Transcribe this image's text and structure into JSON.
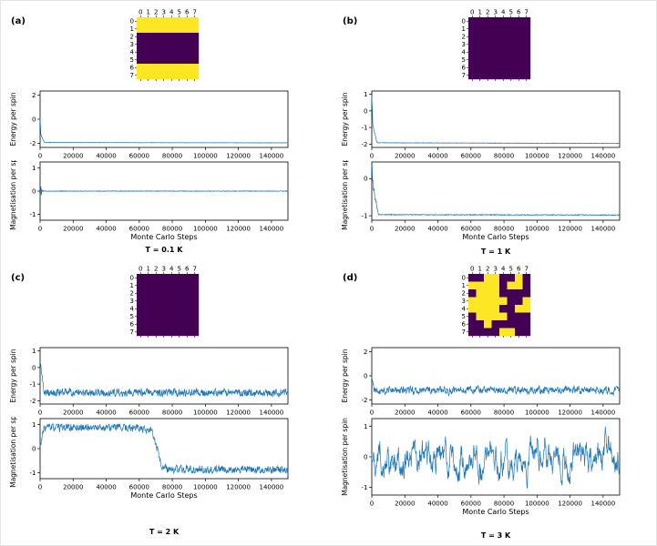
{
  "labels": {
    "xlabel": "Monte Carlo Steps",
    "energy_ylabel": "Energy per spin",
    "magnetisation_ylabel": "Magnetisation per spin"
  },
  "colors": {
    "line": "#1f77b4",
    "spin_up": "#fde725",
    "spin_down": "#440154",
    "axis": "#000000"
  },
  "chart_data": [
    {
      "panel": "(a)",
      "temperature": "T = 0.1 K",
      "heatmap": {
        "type": "heatmap",
        "x_ticks": [
          "0",
          "1",
          "2",
          "3",
          "4",
          "5",
          "6",
          "7"
        ],
        "y_ticks": [
          "0",
          "1",
          "2",
          "3",
          "4",
          "5",
          "6",
          "7"
        ],
        "values": [
          [
            1,
            1,
            1,
            1,
            1,
            1,
            1,
            1
          ],
          [
            1,
            1,
            1,
            1,
            1,
            1,
            1,
            1
          ],
          [
            0,
            0,
            0,
            0,
            0,
            0,
            0,
            0
          ],
          [
            0,
            0,
            0,
            0,
            0,
            0,
            0,
            0
          ],
          [
            0,
            0,
            0,
            0,
            0,
            0,
            0,
            0
          ],
          [
            0,
            0,
            0,
            0,
            0,
            0,
            0,
            0
          ],
          [
            1,
            1,
            1,
            1,
            1,
            1,
            1,
            1
          ],
          [
            1,
            1,
            1,
            1,
            1,
            1,
            1,
            1
          ]
        ]
      },
      "energy": {
        "type": "line",
        "ylabel": "Energy per spin",
        "xlim": [
          0,
          150000
        ],
        "ylim": [
          -2.35,
          2.35
        ],
        "xticks": [
          0,
          20000,
          40000,
          60000,
          80000,
          100000,
          120000,
          140000
        ],
        "yticks": [
          2,
          0,
          -2
        ],
        "mean_keyframes": [
          [
            0,
            0.05
          ],
          [
            500,
            -1.3
          ],
          [
            2600,
            -1.94
          ],
          [
            150000,
            -1.97
          ]
        ],
        "noise_keyframes": [
          [
            0,
            0.05
          ],
          [
            2600,
            0.012
          ],
          [
            150000,
            0.012
          ]
        ],
        "seed": 11
      },
      "magnetisation": {
        "type": "line",
        "ylabel": "Magnetisation per spin",
        "xlim": [
          0,
          150000
        ],
        "ylim": [
          -1.25,
          1.25
        ],
        "xticks": [
          0,
          20000,
          40000,
          60000,
          80000,
          100000,
          120000,
          140000
        ],
        "yticks": [
          1,
          0,
          -1
        ],
        "mean_keyframes": [
          [
            0,
            0
          ],
          [
            150000,
            0
          ]
        ],
        "noise_keyframes": [
          [
            0,
            0.3
          ],
          [
            1800,
            0.012
          ],
          [
            150000,
            0.012
          ]
        ],
        "seed": 12
      }
    },
    {
      "panel": "(b)",
      "temperature": "T = 1 K",
      "heatmap": {
        "type": "heatmap",
        "x_ticks": [
          "0",
          "1",
          "2",
          "3",
          "4",
          "5",
          "6",
          "7"
        ],
        "y_ticks": [
          "0",
          "1",
          "2",
          "3",
          "4",
          "5",
          "6",
          "7"
        ],
        "values": [
          [
            0,
            0,
            0,
            0,
            0,
            0,
            0,
            0
          ],
          [
            0,
            0,
            0,
            0,
            0,
            0,
            0,
            0
          ],
          [
            0,
            0,
            0,
            0,
            0,
            0,
            0,
            0
          ],
          [
            0,
            0,
            0,
            0,
            0,
            0,
            0,
            0
          ],
          [
            0,
            0,
            0,
            0,
            0,
            0,
            0,
            0
          ],
          [
            0,
            0,
            0,
            0,
            0,
            0,
            0,
            0
          ],
          [
            0,
            0,
            0,
            0,
            0,
            0,
            0,
            0
          ],
          [
            0,
            0,
            0,
            0,
            0,
            0,
            0,
            0
          ]
        ]
      },
      "energy": {
        "type": "line",
        "ylabel": "Energy per spin",
        "xlim": [
          0,
          150000
        ],
        "ylim": [
          -2.2,
          1.2
        ],
        "xticks": [
          0,
          20000,
          40000,
          60000,
          80000,
          100000,
          120000,
          140000
        ],
        "yticks": [
          1,
          0,
          -1,
          -2
        ],
        "mean_keyframes": [
          [
            0,
            0.95
          ],
          [
            700,
            -0.9
          ],
          [
            3200,
            -1.92
          ],
          [
            150000,
            -1.96
          ]
        ],
        "noise_keyframes": [
          [
            0,
            0.06
          ],
          [
            3200,
            0.013
          ],
          [
            150000,
            0.013
          ]
        ],
        "seed": 23
      },
      "magnetisation": {
        "type": "line",
        "ylabel": "Magnetisation per spin",
        "xlim": [
          0,
          150000
        ],
        "ylim": [
          -1.12,
          0.45
        ],
        "xticks": [
          0,
          20000,
          40000,
          60000,
          80000,
          100000,
          120000,
          140000
        ],
        "yticks": [
          0,
          -1
        ],
        "mean_keyframes": [
          [
            0,
            0.36
          ],
          [
            1100,
            -0.3
          ],
          [
            4000,
            -0.97
          ],
          [
            150000,
            -0.98
          ]
        ],
        "noise_keyframes": [
          [
            0,
            0.18
          ],
          [
            4000,
            0.01
          ],
          [
            150000,
            0.01
          ]
        ],
        "seed": 24
      }
    },
    {
      "panel": "(c)",
      "temperature": "T = 2 K",
      "heatmap": {
        "type": "heatmap",
        "x_ticks": [
          "0",
          "1",
          "2",
          "3",
          "4",
          "5",
          "6",
          "7"
        ],
        "y_ticks": [
          "0",
          "1",
          "2",
          "3",
          "4",
          "5",
          "6",
          "7"
        ],
        "values": [
          [
            0,
            0,
            0,
            0,
            0,
            0,
            0,
            0
          ],
          [
            0,
            0,
            0,
            0,
            0,
            0,
            0,
            0
          ],
          [
            0,
            0,
            0,
            0,
            0,
            0,
            0,
            0
          ],
          [
            0,
            0,
            0,
            0,
            0,
            0,
            0,
            0
          ],
          [
            0,
            0,
            0,
            0,
            0,
            0,
            0,
            0
          ],
          [
            0,
            0,
            0,
            0,
            0,
            0,
            0,
            0
          ],
          [
            0,
            0,
            0,
            0,
            0,
            0,
            0,
            0
          ],
          [
            0,
            0,
            0,
            0,
            0,
            0,
            0,
            0
          ]
        ]
      },
      "energy": {
        "type": "line",
        "ylabel": "Energy per spin",
        "xlim": [
          0,
          150000
        ],
        "ylim": [
          -2.2,
          1.2
        ],
        "xticks": [
          0,
          20000,
          40000,
          60000,
          80000,
          100000,
          120000,
          140000
        ],
        "yticks": [
          1,
          0,
          -1,
          -2
        ],
        "mean_keyframes": [
          [
            0,
            0.45
          ],
          [
            2400,
            -1.5
          ],
          [
            150000,
            -1.53
          ]
        ],
        "noise_keyframes": [
          [
            0,
            0.1
          ],
          [
            2400,
            0.2
          ],
          [
            150000,
            0.2
          ]
        ],
        "ar": 0.35,
        "seed": 35
      },
      "magnetisation": {
        "type": "line",
        "ylabel": "Magnetisation per spin",
        "xlim": [
          0,
          150000
        ],
        "ylim": [
          -1.25,
          1.25
        ],
        "xticks": [
          0,
          20000,
          40000,
          60000,
          80000,
          100000,
          120000,
          140000
        ],
        "yticks": [
          1,
          0,
          -1
        ],
        "mean_keyframes": [
          [
            0,
            0.1
          ],
          [
            2600,
            0.88
          ],
          [
            60000,
            0.88
          ],
          [
            64000,
            0.68
          ],
          [
            67000,
            0.8
          ],
          [
            70500,
            0.05
          ],
          [
            74000,
            -0.8
          ],
          [
            80000,
            -0.88
          ],
          [
            150000,
            -0.88
          ]
        ],
        "noise_keyframes": [
          [
            0,
            0.14
          ],
          [
            150000,
            0.14
          ]
        ],
        "ar": 0.45,
        "clamp": [
          -1.02,
          1.02
        ],
        "seed": 33
      }
    },
    {
      "panel": "(d)",
      "temperature": "T = 3 K",
      "heatmap": {
        "type": "heatmap",
        "x_ticks": [
          "0",
          "1",
          "2",
          "3",
          "4",
          "5",
          "6",
          "7"
        ],
        "y_ticks": [
          "0",
          "1",
          "2",
          "3",
          "4",
          "5",
          "6",
          "7"
        ],
        "values": [
          [
            0,
            0,
            1,
            1,
            0,
            0,
            1,
            0
          ],
          [
            1,
            1,
            1,
            1,
            0,
            1,
            1,
            0
          ],
          [
            0,
            1,
            1,
            1,
            0,
            0,
            0,
            0
          ],
          [
            1,
            1,
            1,
            1,
            1,
            0,
            0,
            1
          ],
          [
            1,
            1,
            1,
            1,
            0,
            0,
            1,
            1
          ],
          [
            0,
            1,
            1,
            1,
            1,
            0,
            0,
            0
          ],
          [
            0,
            0,
            1,
            0,
            0,
            0,
            0,
            0
          ],
          [
            0,
            0,
            0,
            0,
            1,
            1,
            0,
            0
          ]
        ]
      },
      "energy": {
        "type": "line",
        "ylabel": "Energy per spin",
        "xlim": [
          0,
          150000
        ],
        "ylim": [
          -2.35,
          2.35
        ],
        "xticks": [
          0,
          20000,
          40000,
          60000,
          80000,
          100000,
          120000,
          140000
        ],
        "yticks": [
          2,
          0,
          -2
        ],
        "mean_keyframes": [
          [
            0,
            -0.2
          ],
          [
            1400,
            -1.2
          ],
          [
            150000,
            -1.2
          ]
        ],
        "noise_keyframes": [
          [
            0,
            0.15
          ],
          [
            1400,
            0.26
          ],
          [
            150000,
            0.26
          ]
        ],
        "ar": 0.5,
        "seed": 41
      },
      "magnetisation": {
        "type": "line",
        "ylabel": "Magnetisation per spin",
        "xlim": [
          0,
          150000
        ],
        "ylim": [
          -1.25,
          1.25
        ],
        "xticks": [
          0,
          20000,
          40000,
          60000,
          80000,
          100000,
          120000,
          140000
        ],
        "yticks": [
          1,
          0,
          -1
        ],
        "mean_keyframes": [
          [
            0,
            0
          ],
          [
            150000,
            0
          ]
        ],
        "noise_keyframes": [
          [
            0,
            0.3
          ],
          [
            150000,
            0.3
          ]
        ],
        "ar": 0.88,
        "clamp": [
          -1.03,
          1.03
        ],
        "seed": 47
      }
    }
  ]
}
